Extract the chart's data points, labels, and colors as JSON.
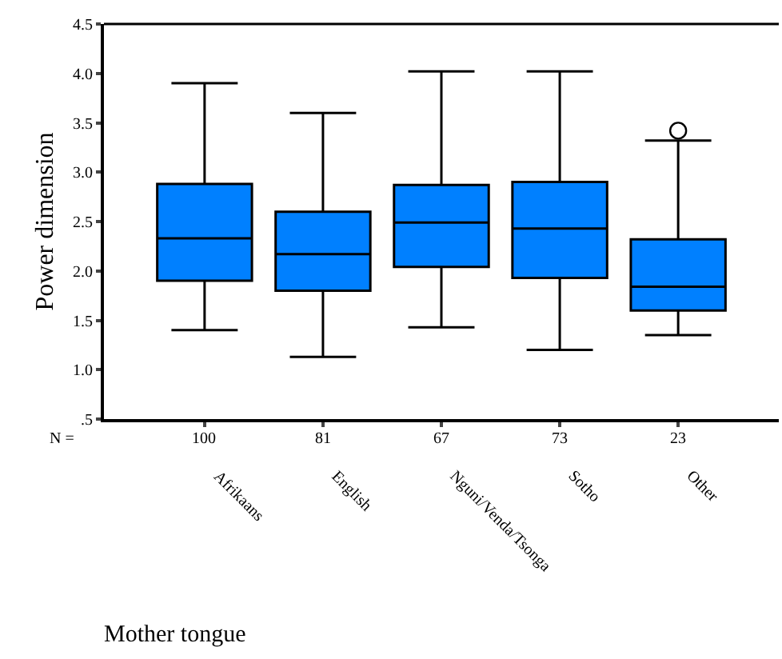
{
  "chart_data": {
    "type": "box",
    "ylabel": "Power dimension",
    "xlabel": "Mother tongue",
    "categories": [
      "Afrikaans",
      "English",
      "Nguni/Venda/Tsonga",
      "Sotho",
      "Other"
    ],
    "color": "#0080ff",
    "boxes": [
      {
        "low": 1.4,
        "q1": 1.9,
        "median": 2.33,
        "q3": 2.88,
        "high": 3.9
      },
      {
        "low": 1.13,
        "q1": 1.8,
        "median": 2.17,
        "q3": 2.6,
        "high": 3.6
      },
      {
        "low": 1.43,
        "q1": 2.04,
        "median": 2.49,
        "q3": 2.87,
        "high": 4.02
      },
      {
        "low": 1.2,
        "q1": 1.93,
        "median": 2.43,
        "q3": 2.9,
        "high": 4.02
      },
      {
        "low": 1.35,
        "q1": 1.6,
        "median": 1.84,
        "q3": 2.32,
        "high": 3.32,
        "outliers": [
          3.42
        ]
      }
    ],
    "ylim": [
      0.5,
      4.5
    ],
    "yticks": [
      {
        "value": 0.5,
        "label": ".5"
      },
      {
        "value": 1,
        "label": "1.0"
      },
      {
        "value": 1.5,
        "label": "1.5"
      },
      {
        "value": 2,
        "label": "2.0"
      },
      {
        "value": 2.5,
        "label": "2.5"
      },
      {
        "value": 3,
        "label": "3.0"
      },
      {
        "value": 3.5,
        "label": "3.5"
      },
      {
        "value": 4,
        "label": "4.0"
      },
      {
        "value": 4.5,
        "label": "4.5"
      }
    ],
    "annotations": [
      "N =",
      "100",
      "81",
      "67",
      "73",
      "23"
    ]
  }
}
